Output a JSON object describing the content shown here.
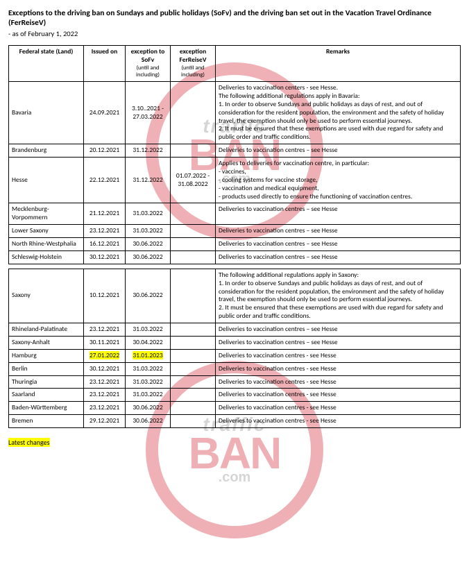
{
  "title": "Exceptions to the driving ban on Sundays and public holidays (SoFv) and the driving ban set out in the Vacation Travel Ordinance (FerReiseV)",
  "subtitle": "- as of February 1, 2022",
  "columns": {
    "state": "Federal state (Land)",
    "issued": "Issued on",
    "sofv": "exception to SoFv",
    "sofv_sub": "(until and including)",
    "fer": "exception FerReiseV",
    "fer_sub": "(until and including)",
    "remarks": "Remarks"
  },
  "rows": [
    {
      "state": "Bavaria",
      "issued": "24.09.2021",
      "sofv": "3.10..2021 - 27.03.2022",
      "fer": "",
      "remarks": "Deliveries to vaccination centers - see Hesse.\nThe following additional regulations apply in Bavaria:\n1. In order to observe Sundays and public holidays as days of rest, and out of consideration for the resident population, the environment and the safety of holiday travel, the exemption should only be used to perform essential journeys.\n2. It must be ensured that these exemptions are used with due regard for safety and public order and traffic conditions."
    },
    {
      "state": "Brandenburg",
      "issued": "20.12.2021",
      "sofv": "31.12.2022",
      "fer": "",
      "remarks": "Deliveries to vaccination centres – see Hesse"
    },
    {
      "state": "Hesse",
      "issued": "22.12.2021",
      "sofv": "31.12.2022",
      "fer": "01.07.2022 - 31.08.2022",
      "remarks": "Applies to deliveries for vaccination centre, in particular:\n- vaccines,\n- cooling systems for vaccine storage,\n- vaccination and medical equipment,\n- products used directly to ensure the functioning of vaccination centres."
    },
    {
      "state": "Mecklenburg-Vorpommern",
      "issued": "21.12.2021",
      "sofv": "31.03.2022",
      "fer": "",
      "remarks": "Deliveries to vaccination centres – see Hesse"
    },
    {
      "state": "Lower Saxony",
      "issued": "23.12.2021",
      "sofv": "31.03.2022",
      "fer": "",
      "remarks": "Deliveries to vaccination centres – see Hesse"
    },
    {
      "state": "North Rhine-Westphalia",
      "issued": "16.12.2021",
      "sofv": "30.06.2022",
      "fer": "",
      "remarks": "Deliveries to vaccination centres – see Hesse"
    },
    {
      "state": "Schleswig-Holstein",
      "issued": "30.12.2021",
      "sofv": "30.06.2022",
      "fer": "",
      "remarks": "Deliveries to vaccination centres – see Hesse"
    }
  ],
  "rows2": [
    {
      "state": "Saxony",
      "issued": "10.12.2021",
      "sofv": "30.06.2022",
      "fer": "",
      "remarks": "The following additional regulations apply in Saxony:\n\n1. In order to observe Sundays and public holidays as days of rest, and out of consideration for the resident population, the environment and the safety of holiday travel, the exemption should only be used to perform essential journeys.\n\n2. It must be ensured that these exemptions are used with due regard for safety and public order and traffic conditions."
    },
    {
      "state": "Rhineland-Palatinate",
      "issued": "23.12.2021",
      "sofv": "31.03.2022",
      "fer": "",
      "remarks": "Deliveries to vaccination centres – see Hesse"
    },
    {
      "state": "Saxony-Anhalt",
      "issued": "30.11.2021",
      "sofv": "30.04.2022",
      "fer": "",
      "remarks": "Deliveries to vaccination centres – see Hesse"
    },
    {
      "state": "Hamburg",
      "issued": "27.01.2022",
      "sofv": "31.01.2023",
      "fer": "",
      "remarks": "Deliveries to vaccination centres - see Hesse",
      "hl_issued": true,
      "hl_sofv": true
    },
    {
      "state": "Berlin",
      "issued": "30.12.2021",
      "sofv": "31.03.2022",
      "fer": "",
      "remarks": "Deliveries to vaccination centres - see Hesse"
    },
    {
      "state": "Thuringia",
      "issued": "23.12.2021",
      "sofv": "31.03.2022",
      "fer": "",
      "remarks": "Deliveries to vaccination centres - see Hesse"
    },
    {
      "state": "Saarland",
      "issued": "23.12.2021",
      "sofv": "31.03.2022",
      "fer": "",
      "remarks": "Deliveries to vaccination centres - see Hesse"
    },
    {
      "state": "Baden-Württemberg",
      "issued": "23.12.2021",
      "sofv": "30.06.2022",
      "fer": "",
      "remarks": "Deliveries to vaccination centres - see Hesse"
    },
    {
      "state": "Bremen",
      "issued": "29.12.2021",
      "sofv": "30.06.2022",
      "fer": "",
      "remarks": "Deliveries to vaccination centres - see Hesse"
    }
  ],
  "footer": "Latest changes",
  "watermark": {
    "t1": "traffic",
    "t2": "BAN",
    "t3": ".com"
  }
}
